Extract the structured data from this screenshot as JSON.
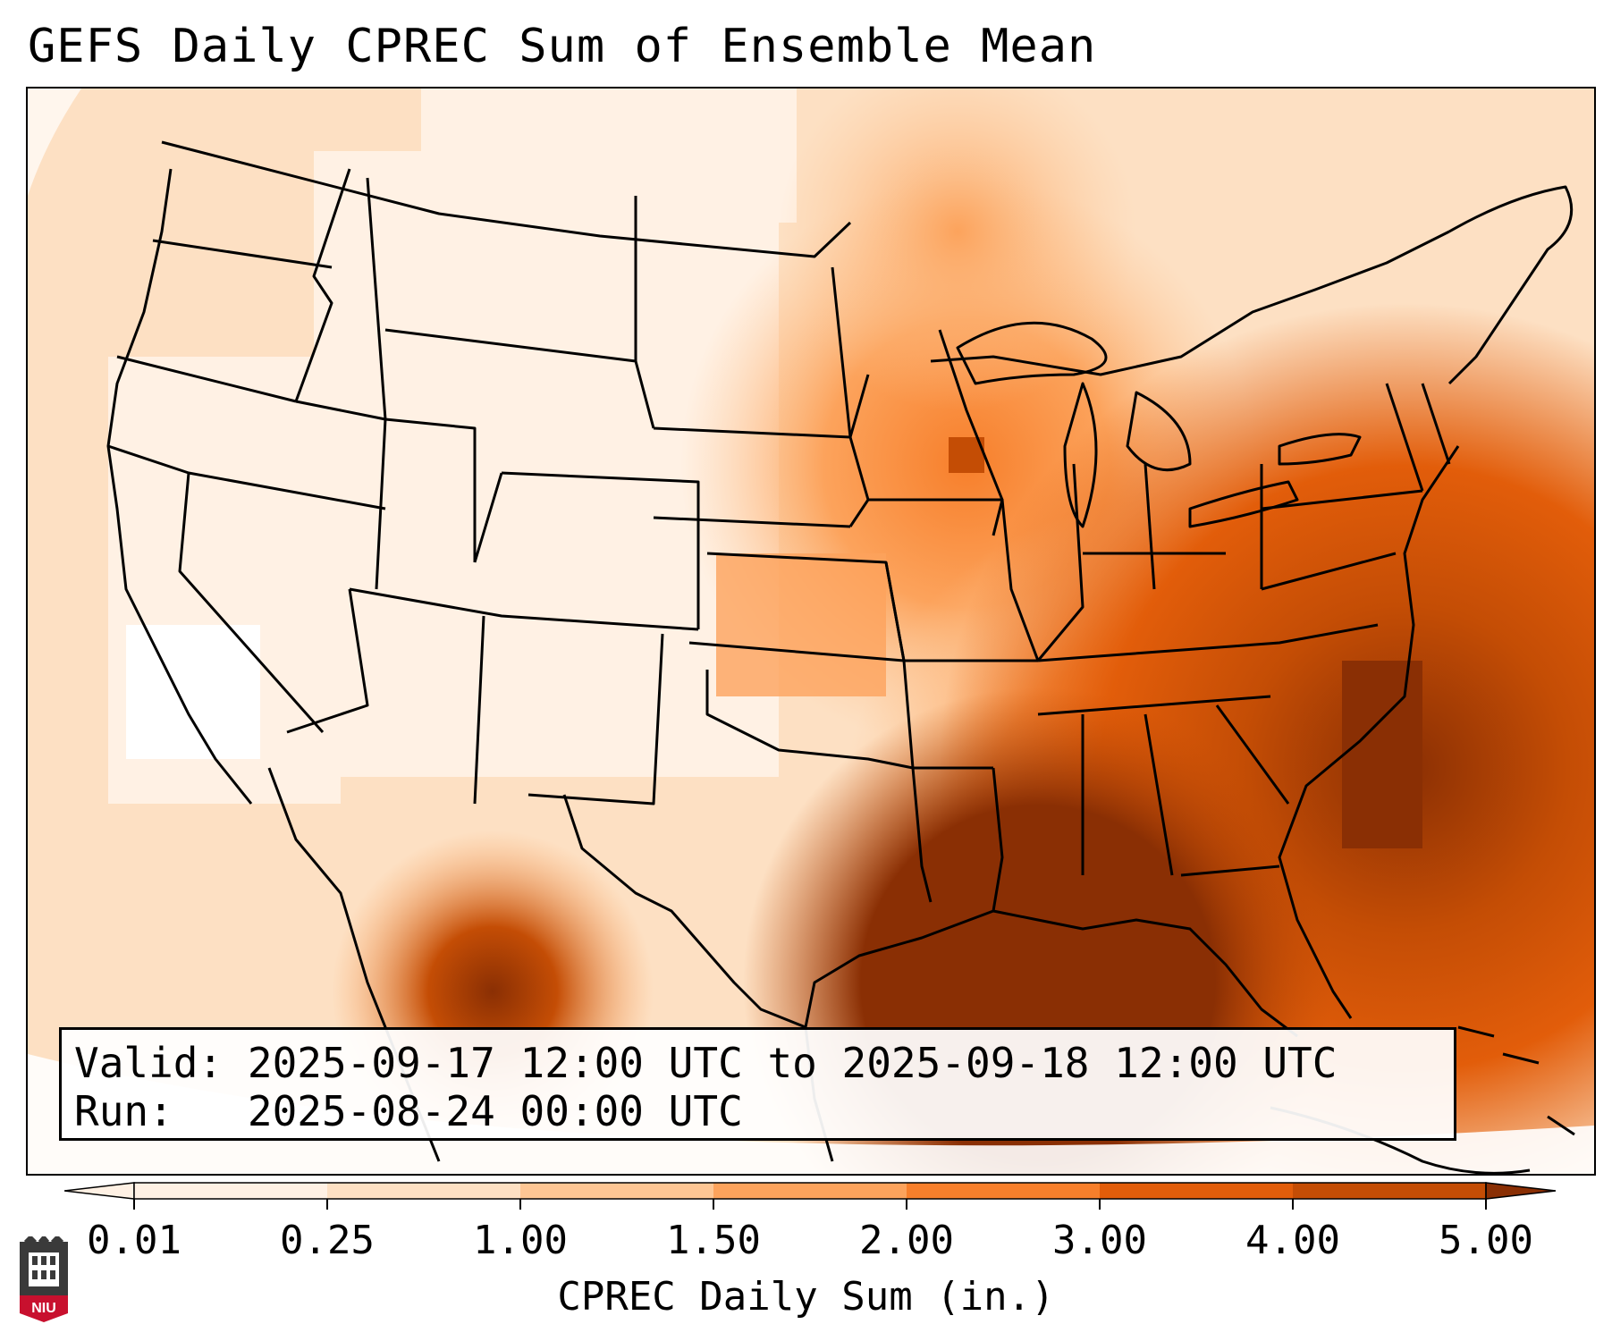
{
  "title": "GEFS Daily CPREC Sum of Ensemble Mean",
  "info": {
    "valid_label": "Valid:",
    "valid_value": "2025-09-17 12:00 UTC to 2025-09-18 12:00 UTC",
    "run_label": "Run:",
    "run_value": "2025-08-24 00:00 UTC"
  },
  "colorbar": {
    "title": "CPREC Daily Sum (in.)",
    "ticks": [
      "0.01",
      "0.25",
      "1.00",
      "1.50",
      "2.00",
      "3.00",
      "4.00",
      "5.00"
    ],
    "colors": [
      "#fff1e4",
      "#fde0c3",
      "#fdc694",
      "#fca35c",
      "#f77f2b",
      "#e25d0a",
      "#c44d05",
      "#8a2f04"
    ],
    "extend": "both"
  },
  "logo": {
    "icon": "niu-seal-icon",
    "text": "NIU",
    "color": "#c8102e"
  },
  "map": {
    "projection": "Lambert Conformal (CONUS)",
    "features": [
      "coastlines",
      "state-borders",
      "country-borders"
    ]
  }
}
